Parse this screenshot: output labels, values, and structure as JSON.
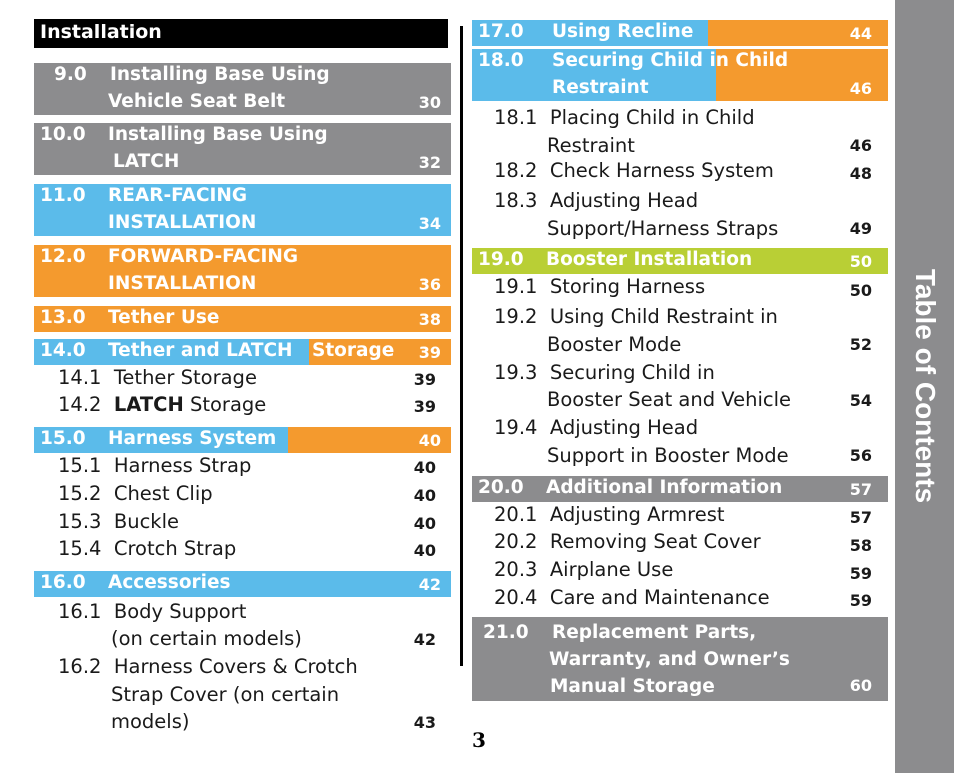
{
  "section_header": "Installation",
  "side_tab": "Table of Contents",
  "page_number": "3",
  "colors": {
    "gray": "#8c8c8e",
    "blue": "#5bbbea",
    "orange": "#f49a2e",
    "green": "#b9cf35",
    "black": "#000000"
  },
  "left": {
    "s9": {
      "num": "9.0",
      "line1": "Installing Base Using",
      "line2": "Vehicle Seat Belt",
      "page": "30"
    },
    "s10": {
      "num": "10.0",
      "line1": "Installing Base Using",
      "line2": "LATCH",
      "page": "32"
    },
    "s11": {
      "num": "11.0",
      "line1": "REAR-FACING",
      "line2": "INSTALLATION",
      "page": "34"
    },
    "s12": {
      "num": "12.0",
      "line1": "FORWARD-FACING",
      "line2": "INSTALLATION",
      "page": "36"
    },
    "s13": {
      "num": "13.0",
      "title": "Tether Use",
      "page": "38"
    },
    "s14": {
      "num": "14.0",
      "title_a": "Tether and LATCH",
      "title_b": "Storage",
      "page": "39",
      "items": [
        {
          "num": "14.1",
          "label": "Tether Storage",
          "page": "39"
        },
        {
          "num": "14.2",
          "label_bold": "LATCH",
          "label_rest": "Storage",
          "page": "39"
        }
      ]
    },
    "s15": {
      "num": "15.0",
      "title": "Harness System",
      "page": "40",
      "items": [
        {
          "num": "15.1",
          "label": "Harness Strap",
          "page": "40"
        },
        {
          "num": "15.2",
          "label": "Chest Clip",
          "page": "40"
        },
        {
          "num": "15.3",
          "label": "Buckle",
          "page": "40"
        },
        {
          "num": "15.4",
          "label": "Crotch Strap",
          "page": "40"
        }
      ]
    },
    "s16": {
      "num": "16.0",
      "title": "Accessories",
      "page": "42",
      "items": [
        {
          "num": "16.1",
          "line1": "Body Support",
          "line2": "(on certain models)",
          "page": "42"
        },
        {
          "num": "16.2",
          "line1": "Harness Covers & Crotch",
          "line2": "Strap Cover (on certain",
          "line3": "models)",
          "page": "43"
        }
      ]
    }
  },
  "right": {
    "s17": {
      "num": "17.0",
      "title": "Using Recline",
      "page": "44"
    },
    "s18": {
      "num": "18.0",
      "line1": "Securing Child in Child",
      "line2": "Restraint",
      "page": "46",
      "items": [
        {
          "num": "18.1",
          "line1": "Placing Child in Child",
          "line2": "Restraint",
          "page": "46"
        },
        {
          "num": "18.2",
          "label": "Check Harness System",
          "page": "48"
        },
        {
          "num": "18.3",
          "line1": "Adjusting Head",
          "line2": "Support/Harness Straps",
          "page": "49"
        }
      ]
    },
    "s19": {
      "num": "19.0",
      "title": "Booster Installation",
      "page": "50",
      "items": [
        {
          "num": "19.1",
          "label": "Storing Harness",
          "page": "50"
        },
        {
          "num": "19.2",
          "line1": "Using Child Restraint in",
          "line2": "Booster Mode",
          "page": "52"
        },
        {
          "num": "19.3",
          "line1": "Securing Child in",
          "line2": "Booster Seat and Vehicle",
          "page": "54"
        },
        {
          "num": "19.4",
          "line1": "Adjusting Head",
          "line2": "Support in Booster Mode",
          "page": "56"
        }
      ]
    },
    "s20": {
      "num": "20.0",
      "title": "Additional Information",
      "page": "57",
      "items": [
        {
          "num": "20.1",
          "label": "Adjusting Armrest",
          "page": "57"
        },
        {
          "num": "20.2",
          "label": "Removing Seat Cover",
          "page": "58"
        },
        {
          "num": "20.3",
          "label": "Airplane Use",
          "page": "59"
        },
        {
          "num": "20.4",
          "label": "Care and Maintenance",
          "page": "59"
        }
      ]
    },
    "s21": {
      "num": "21.0",
      "line1": "Replacement Parts,",
      "line2": "Warranty, and Owner’s",
      "line3": "Manual Storage",
      "page": "60"
    }
  }
}
